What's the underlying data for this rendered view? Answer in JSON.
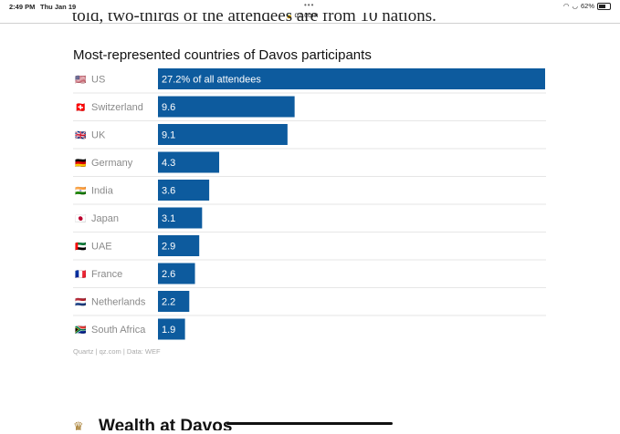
{
  "status_bar": {
    "time": "2:49 PM",
    "date": "Thu Jan 19",
    "battery": "62%",
    "battery_level": 0.62
  },
  "browser": {
    "url": "qz.com"
  },
  "article": {
    "cutoff_text": "told, two-thirds of the attendees are from 10 nations.",
    "next_heading": "Wealth at Davos"
  },
  "chart_data": {
    "type": "bar",
    "orientation": "horizontal",
    "title": "Most-represented countries of Davos participants",
    "categories": [
      "US",
      "Switzerland",
      "UK",
      "Germany",
      "India",
      "Japan",
      "UAE",
      "France",
      "Netherlands",
      "South Africa"
    ],
    "flags": [
      "🇺🇸",
      "🇨🇭",
      "🇬🇧",
      "🇩🇪",
      "🇮🇳",
      "🇯🇵",
      "🇦🇪",
      "🇫🇷",
      "🇳🇱",
      "🇿🇦"
    ],
    "values": [
      27.2,
      9.6,
      9.1,
      4.3,
      3.6,
      3.1,
      2.9,
      2.6,
      2.2,
      1.9
    ],
    "value_labels": [
      "27.2% of all attendees",
      "9.6",
      "9.1",
      "4.3",
      "3.6",
      "3.1",
      "2.9",
      "2.6",
      "2.2",
      "1.9"
    ],
    "xlim": [
      0,
      27.2
    ],
    "bar_color": "#0d5b9e",
    "source": "Quartz | qz.com | Data: WEF",
    "grid": false,
    "legend": false
  }
}
